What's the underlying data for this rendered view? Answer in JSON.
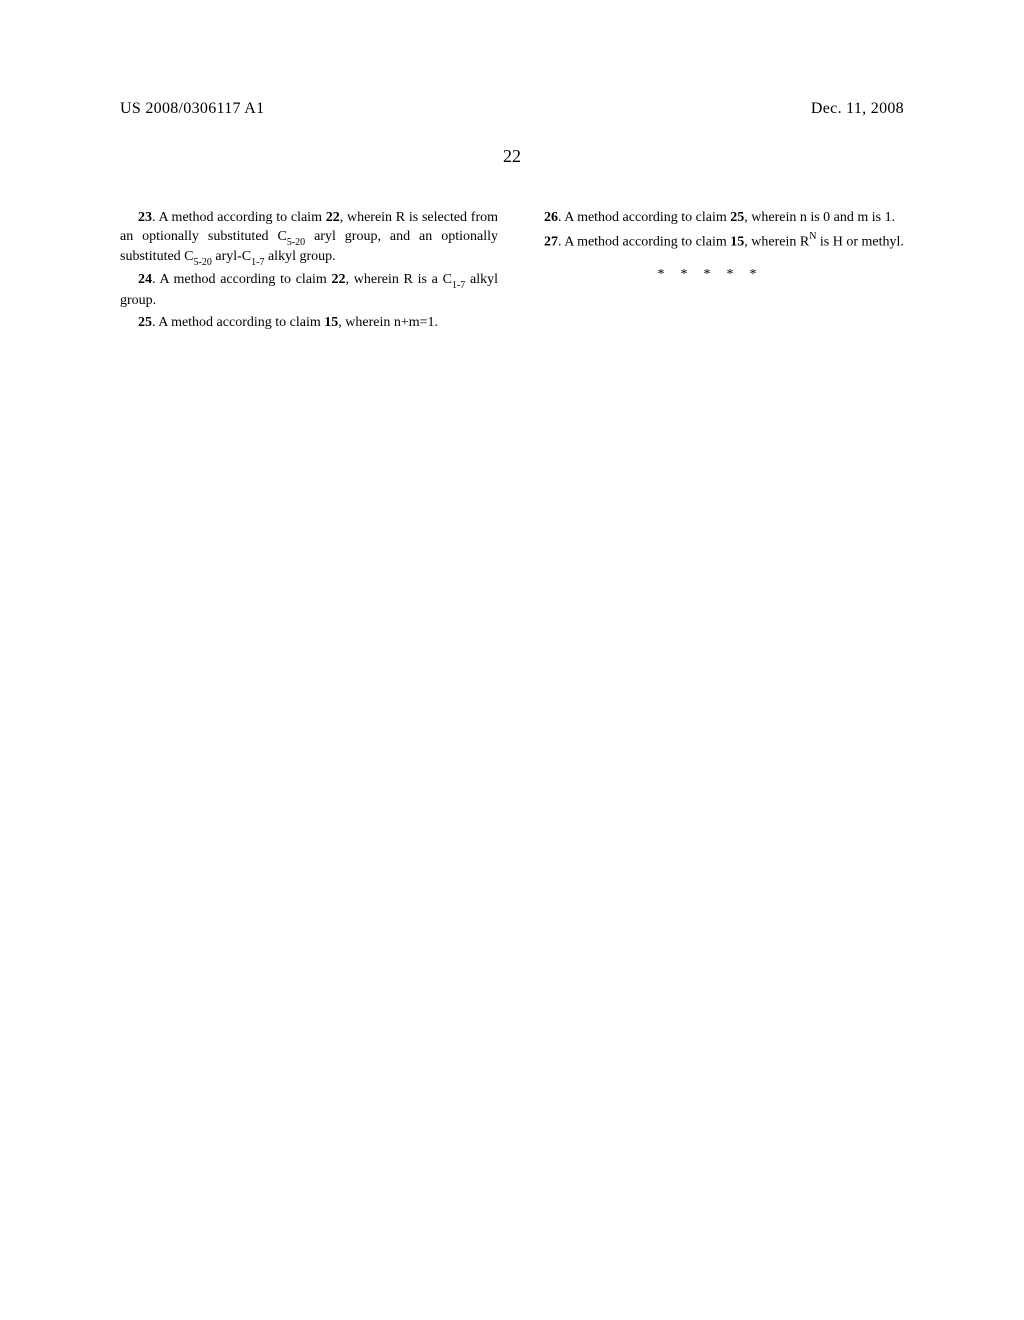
{
  "header": {
    "publication_number": "US 2008/0306117 A1",
    "publication_date": "Dec. 11, 2008"
  },
  "page_number": "22",
  "left_column": {
    "claim23": {
      "num": "23",
      "part1": ". A method according to claim ",
      "ref": "22",
      "part2": ", wherein R is selected from an optionally substituted C",
      "sub1": "5-20",
      "part3": " aryl group, and an optionally substituted C",
      "sub2": "5-20",
      "part4": " aryl-C",
      "sub3": "1-7",
      "part5": " alkyl group."
    },
    "claim24": {
      "num": "24",
      "part1": ". A method according to claim ",
      "ref": "22",
      "part2": ", wherein R is a C",
      "sub1": "1-7",
      "part3": " alkyl group."
    },
    "claim25": {
      "num": "25",
      "part1": ". A method according to claim ",
      "ref": "15",
      "part2": ", wherein n+m=1."
    }
  },
  "right_column": {
    "claim26": {
      "num": "26",
      "part1": ". A method according to claim ",
      "ref": "25",
      "part2": ", wherein n is 0 and m is 1."
    },
    "claim27": {
      "num": "27",
      "part1": ". A method according to claim ",
      "ref": "15",
      "part2": ", wherein R",
      "sup1": "N",
      "part3": " is H or methyl."
    },
    "asterisks": "*****"
  }
}
